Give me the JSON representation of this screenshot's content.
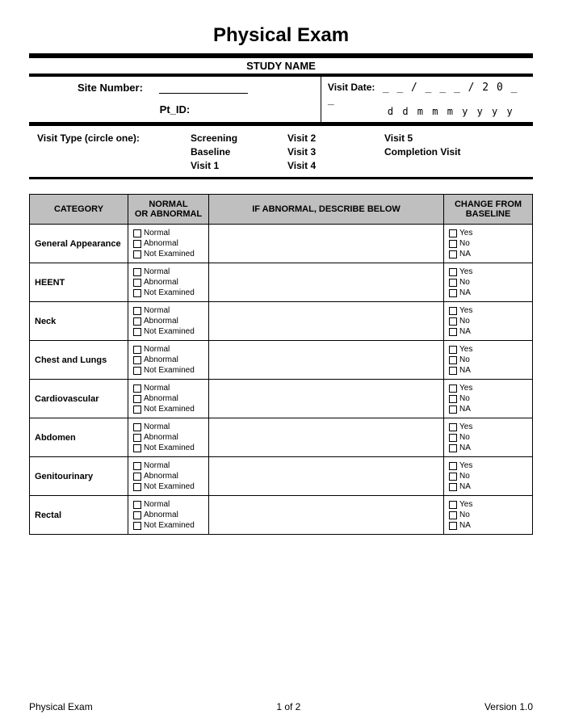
{
  "title": "Physical Exam",
  "study_name": "STUDY NAME",
  "site_number_label": "Site Number:",
  "pt_id_label": "Pt_ID:",
  "visit_date_label": "Visit Date:",
  "date_blanks": "_ _ / _ _ _ / 2 0 _ _",
  "date_hint": "d  d   m  m  m   y   y   y   y",
  "visit_type_label": "Visit Type (circle one):",
  "visit_types": {
    "r0c0": "Screening",
    "r0c1": "Visit 2",
    "r0c2": "Visit 5",
    "r1c0": "Baseline",
    "r1c1": "Visit 3",
    "r1c2": "Completion Visit",
    "r2c0": "Visit 1",
    "r2c1": "Visit 4",
    "r2c2": ""
  },
  "table_headers": {
    "category": "CATEGORY",
    "normal": "NORMAL\nOR ABNORMAL",
    "describe": "IF ABNORMAL, DESCRIBE BELOW",
    "change": "CHANGE FROM\nBASELINE"
  },
  "status_options": [
    "Normal",
    "Abnormal",
    "Not Examined"
  ],
  "change_options": [
    "Yes",
    "No",
    "NA"
  ],
  "categories": [
    "General Appearance",
    "HEENT",
    "Neck",
    "Chest and Lungs",
    "Cardiovascular",
    "Abdomen",
    "Genitourinary",
    "Rectal"
  ],
  "footer": {
    "left": "Physical Exam",
    "center": "1 of  2",
    "right": "Version 1.0"
  },
  "colors": {
    "header_bg": "#bfbfbf",
    "border": "#000000",
    "background": "#ffffff"
  }
}
